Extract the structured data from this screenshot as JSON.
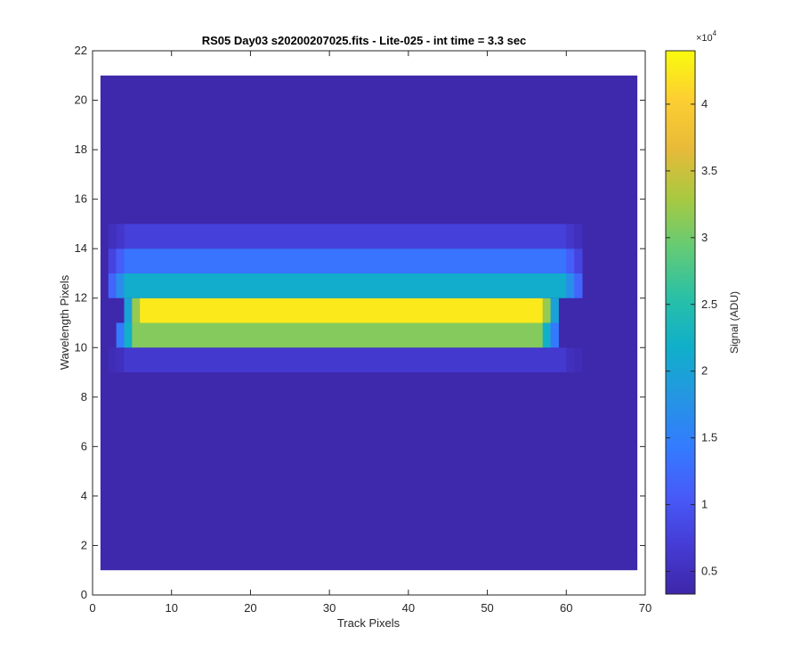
{
  "chart_data": {
    "type": "heatmap",
    "title": "RS05 Day03  s20200207025.fits - Lite-025 - int time = 3.3 sec",
    "xlabel": "Track Pixels",
    "ylabel": "Wavelength Pixels",
    "xlim": [
      0,
      70
    ],
    "ylim": [
      0,
      22
    ],
    "xticks": [
      0,
      10,
      20,
      30,
      40,
      50,
      60,
      70
    ],
    "yticks": [
      0,
      2,
      4,
      6,
      8,
      10,
      12,
      14,
      16,
      18,
      20,
      22
    ],
    "grid": false,
    "colormap": "parula",
    "x_extent": [
      1,
      69
    ],
    "y_extent": [
      1,
      21
    ],
    "colorbar": {
      "label": "Signal (ADU)",
      "multiplier_label": "×10",
      "multiplier_exponent": "4",
      "range": [
        0.33,
        4.4
      ],
      "ticks": [
        0.5,
        1,
        1.5,
        2,
        2.5,
        3,
        3.5,
        4
      ],
      "tick_labels": [
        "0.5",
        "1",
        "1.5",
        "2",
        "2.5",
        "3",
        "3.5",
        "4"
      ]
    },
    "background_value": 0.35,
    "rows": [
      {
        "y": [
          9,
          10
        ],
        "x": [
          3,
          61
        ],
        "value": 0.65,
        "edge": [
          0.5,
          0.45
        ]
      },
      {
        "y": [
          10,
          11
        ],
        "x": [
          4,
          58
        ],
        "value": 3.1,
        "edge": [
          2.2,
          1.4
        ]
      },
      {
        "y": [
          11,
          12
        ],
        "x": [
          5,
          58
        ],
        "value": 4.25,
        "edge": [
          3.2,
          2.0
        ]
      },
      {
        "y": [
          12,
          13
        ],
        "x": [
          3,
          61
        ],
        "value": 2.15,
        "edge": [
          1.7,
          1.2
        ]
      },
      {
        "y": [
          13,
          14
        ],
        "x": [
          3,
          61
        ],
        "value": 1.35,
        "edge": [
          1.1,
          0.8
        ]
      },
      {
        "y": [
          14,
          15
        ],
        "x": [
          3,
          61
        ],
        "value": 0.75,
        "edge": [
          0.6,
          0.5
        ]
      }
    ]
  },
  "colors": {
    "axes": "#262626",
    "background": "#ffffff"
  }
}
